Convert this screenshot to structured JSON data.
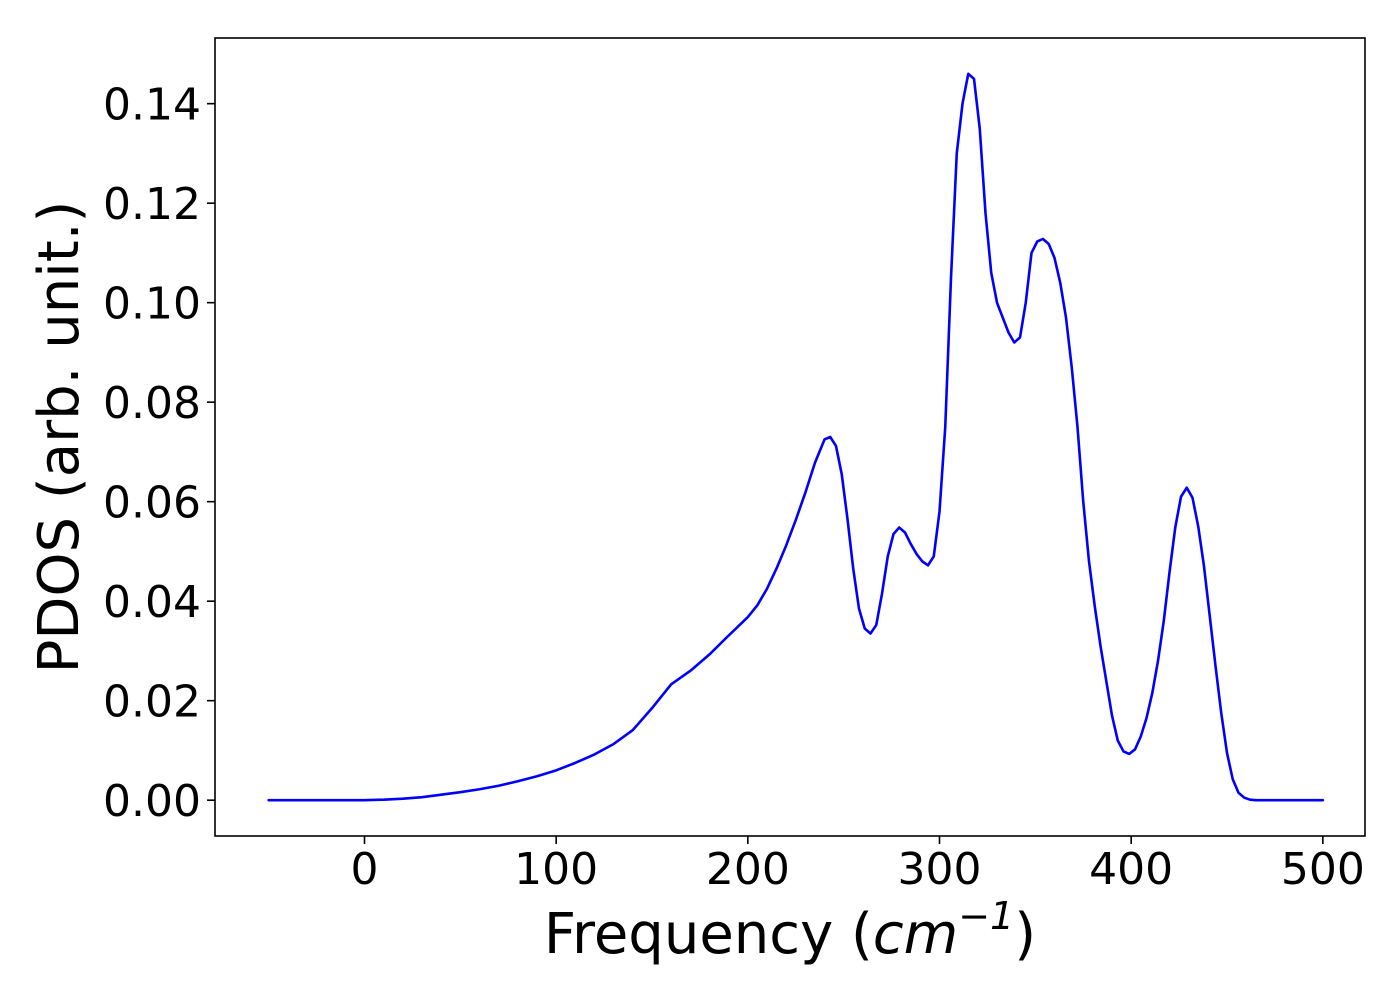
{
  "chart_data": {
    "type": "line",
    "title": "",
    "xlabel_prefix": "Frequency (",
    "xlabel_unit": "cm",
    "xlabel_exponent": "−1",
    "xlabel_suffix": ")",
    "ylabel": "PDOS (arb. unit.)",
    "xlim": [
      -78,
      522
    ],
    "ylim": [
      -0.0072,
      0.1532
    ],
    "xticks": [
      0,
      100,
      200,
      300,
      400,
      500
    ],
    "xtick_labels": [
      "0",
      "100",
      "200",
      "300",
      "400",
      "500"
    ],
    "yticks": [
      0.0,
      0.02,
      0.04,
      0.06,
      0.08,
      0.1,
      0.12,
      0.14
    ],
    "ytick_labels": [
      "0.00",
      "0.02",
      "0.04",
      "0.06",
      "0.08",
      "0.10",
      "0.12",
      "0.14"
    ],
    "grid": false,
    "series": [
      {
        "color": "#0000ff",
        "x": [
          -50,
          -30,
          -10,
          0,
          10,
          20,
          30,
          40,
          50,
          60,
          70,
          80,
          90,
          100,
          110,
          120,
          130,
          140,
          150,
          160,
          170,
          180,
          190,
          200,
          205,
          210,
          215,
          220,
          225,
          230,
          235,
          240,
          243,
          246,
          249,
          252,
          255,
          258,
          261,
          264,
          267,
          270,
          273,
          276,
          279,
          282,
          285,
          288,
          291,
          294,
          297,
          300,
          303,
          306,
          309,
          312,
          315,
          318,
          321,
          324,
          327,
          330,
          333,
          336,
          339,
          342,
          345,
          348,
          351,
          354,
          357,
          360,
          363,
          366,
          369,
          372,
          375,
          378,
          381,
          384,
          387,
          390,
          393,
          396,
          399,
          402,
          405,
          408,
          411,
          414,
          417,
          420,
          423,
          426,
          429,
          432,
          435,
          438,
          441,
          444,
          447,
          450,
          453,
          456,
          459,
          462,
          465,
          470,
          480,
          500
        ],
        "y": [
          0.0,
          0.0,
          0.0,
          0.0,
          0.0001,
          0.0003,
          0.0006,
          0.0011,
          0.0016,
          0.0022,
          0.0029,
          0.0038,
          0.0048,
          0.006,
          0.0075,
          0.0092,
          0.0113,
          0.0141,
          0.0185,
          0.0233,
          0.026,
          0.0293,
          0.0331,
          0.0368,
          0.0392,
          0.0425,
          0.0466,
          0.0512,
          0.0563,
          0.0618,
          0.0678,
          0.0725,
          0.073,
          0.0712,
          0.0655,
          0.0565,
          0.0465,
          0.0385,
          0.0345,
          0.0335,
          0.0352,
          0.0415,
          0.049,
          0.0535,
          0.0548,
          0.0538,
          0.0515,
          0.0495,
          0.048,
          0.0472,
          0.049,
          0.058,
          0.075,
          0.105,
          0.13,
          0.14,
          0.146,
          0.145,
          0.135,
          0.118,
          0.106,
          0.1,
          0.097,
          0.094,
          0.092,
          0.093,
          0.1,
          0.11,
          0.1123,
          0.1128,
          0.1118,
          0.109,
          0.104,
          0.097,
          0.087,
          0.075,
          0.06,
          0.048,
          0.039,
          0.031,
          0.024,
          0.017,
          0.012,
          0.0098,
          0.0093,
          0.0102,
          0.0128,
          0.0165,
          0.0215,
          0.028,
          0.036,
          0.0458,
          0.0548,
          0.061,
          0.0628,
          0.0608,
          0.055,
          0.047,
          0.037,
          0.027,
          0.0175,
          0.0095,
          0.0042,
          0.0015,
          0.0005,
          0.0001,
          0.0,
          0.0,
          0.0,
          0.0
        ]
      }
    ]
  }
}
